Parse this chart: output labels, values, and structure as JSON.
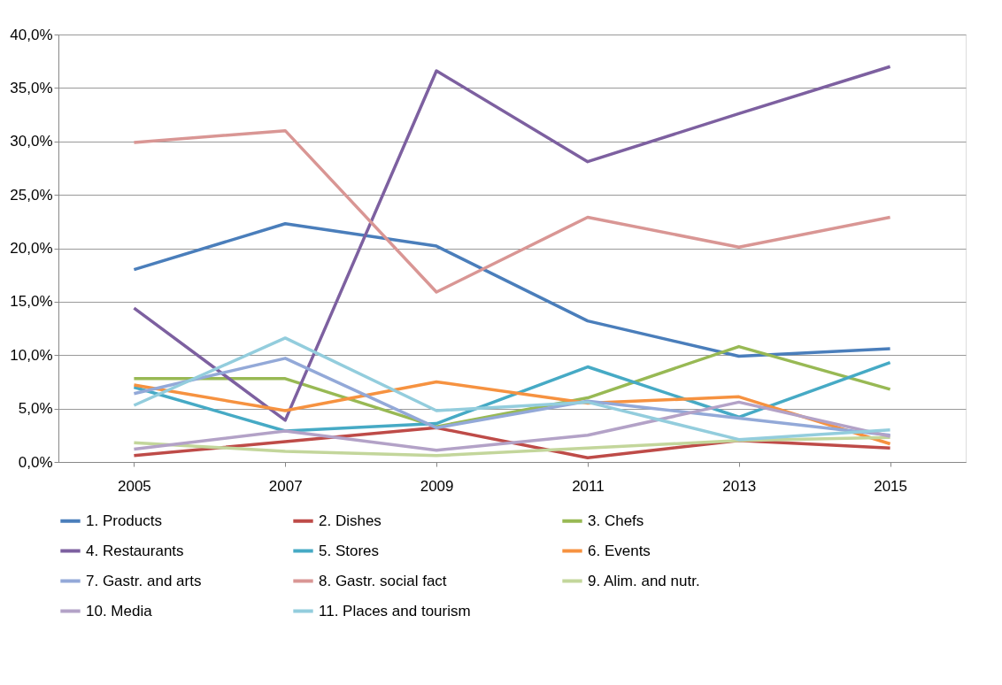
{
  "chart_data": {
    "type": "line",
    "categories": [
      "2005",
      "2007",
      "2009",
      "2011",
      "2013",
      "2015"
    ],
    "ylim": [
      0,
      40
    ],
    "yticks": [
      {
        "value": 0,
        "label": "0,0%"
      },
      {
        "value": 5,
        "label": "5,0%"
      },
      {
        "value": 10,
        "label": "10,0%"
      },
      {
        "value": 15,
        "label": "15,0%"
      },
      {
        "value": 20,
        "label": "20,0%"
      },
      {
        "value": 25,
        "label": "25,0%"
      },
      {
        "value": 30,
        "label": "30,0%"
      },
      {
        "value": 35,
        "label": "35,0%"
      },
      {
        "value": 40,
        "label": "40,0%"
      }
    ],
    "grid": "y",
    "legend": "bottom",
    "marker": "none",
    "line_style": "solid",
    "series": [
      {
        "name": "1. Products",
        "color": "#4a7ebb",
        "values": [
          18.0,
          22.3,
          20.2,
          13.2,
          9.9,
          10.6
        ]
      },
      {
        "name": "2. Dishes",
        "color": "#be4b48",
        "values": [
          0.6,
          1.9,
          3.2,
          0.4,
          2.0,
          1.3
        ]
      },
      {
        "name": "3. Chefs",
        "color": "#98b954",
        "values": [
          7.8,
          7.8,
          3.3,
          6.0,
          10.8,
          6.8
        ]
      },
      {
        "name": "4. Restaurants",
        "color": "#7d60a0",
        "values": [
          14.4,
          3.9,
          36.6,
          28.1,
          32.6,
          37.0
        ]
      },
      {
        "name": "5. Stores",
        "color": "#46aac5",
        "values": [
          7.0,
          2.9,
          3.6,
          8.9,
          4.2,
          9.3
        ]
      },
      {
        "name": "6. Events",
        "color": "#f69240",
        "values": [
          7.2,
          4.8,
          7.5,
          5.5,
          6.1,
          1.7
        ]
      },
      {
        "name": "7. Gastr. and arts",
        "color": "#93a9d8",
        "values": [
          6.4,
          9.7,
          3.2,
          5.7,
          4.1,
          2.5
        ]
      },
      {
        "name": "8. Gastr. social fact",
        "color": "#d99694",
        "values": [
          29.9,
          31.0,
          15.9,
          22.9,
          20.1,
          22.9
        ]
      },
      {
        "name": "9. Alim. and nutr.",
        "color": "#c3d69b",
        "values": [
          1.8,
          1.0,
          0.6,
          1.3,
          2.0,
          2.3
        ]
      },
      {
        "name": "10. Media",
        "color": "#b3a2c7",
        "values": [
          1.2,
          2.9,
          1.1,
          2.5,
          5.6,
          2.4
        ]
      },
      {
        "name": "11. Places and tourism",
        "color": "#93cddd",
        "values": [
          5.3,
          11.6,
          4.8,
          5.6,
          2.1,
          3.0
        ]
      }
    ]
  }
}
